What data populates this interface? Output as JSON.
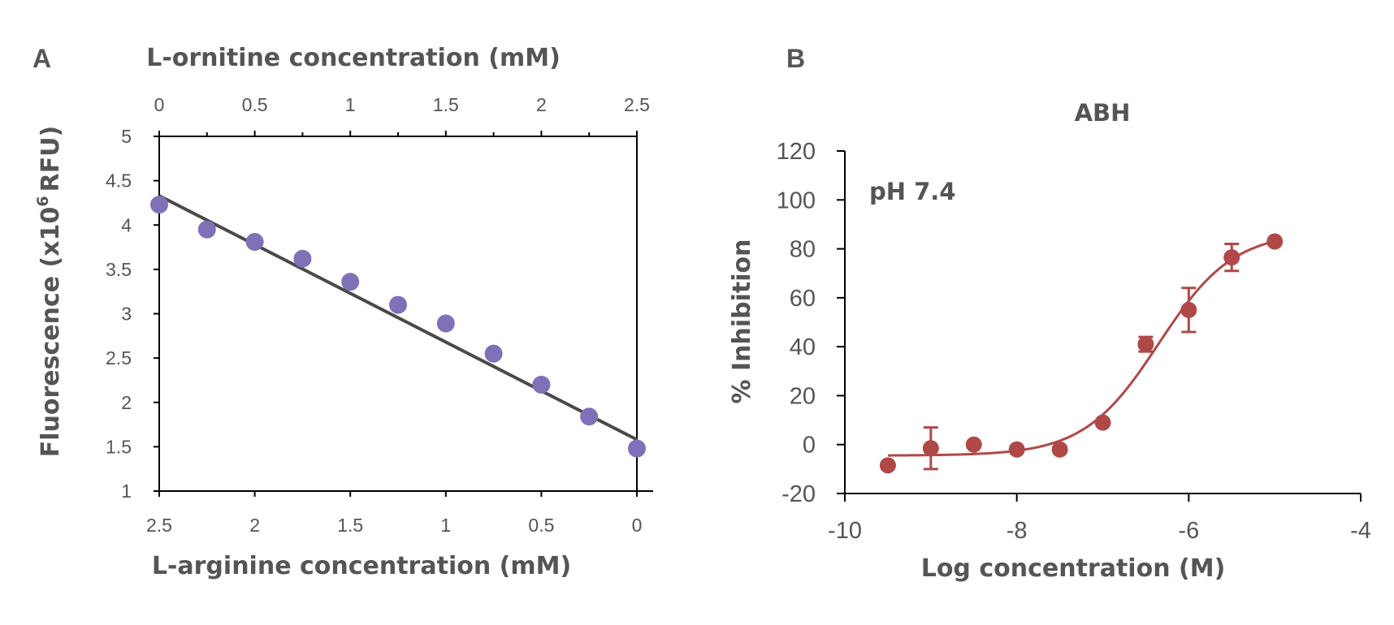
{
  "chart_data": [
    {
      "panel": "A",
      "type": "scatter",
      "x_label_top": "L-ornitine concentration (mM)",
      "x_label_bottom": "L-arginine concentration (mM)",
      "y_label_main": "Fluorescence (x10",
      "y_label_sup": "6",
      "y_label_end": "RFU)",
      "x_top_ticks": [
        "0",
        "0.5",
        "1",
        "1.5",
        "2",
        "2.5"
      ],
      "x_bottom_ticks": [
        "2.5",
        "2",
        "1.5",
        "1",
        "0.5",
        "0"
      ],
      "y_ticks": [
        "1",
        "1.5",
        "2",
        "2.5",
        "3",
        "3.5",
        "4",
        "4.5",
        "5"
      ],
      "ylim": [
        1,
        5
      ],
      "xlim_ornithine": [
        0,
        2.5
      ],
      "series": [
        {
          "x_ornithine": [
            0,
            0.25,
            0.5,
            0.75,
            1,
            1.25,
            1.5,
            1.75,
            2,
            2.25,
            2.5
          ],
          "x_arginine": [
            2.5,
            2.25,
            2.0,
            1.75,
            1.5,
            1.25,
            1.0,
            0.75,
            0.5,
            0.25,
            0
          ],
          "y": [
            4.23,
            3.95,
            3.81,
            3.62,
            3.36,
            3.1,
            2.89,
            2.55,
            2.2,
            1.84,
            1.48
          ]
        }
      ],
      "fit_line": {
        "x_ornithine": [
          0,
          2.5
        ],
        "y": [
          4.33,
          1.58
        ]
      },
      "colors": {
        "points": "#8070b8",
        "line": "#4a4a4a"
      },
      "grid": false
    },
    {
      "panel": "B",
      "type": "scatter",
      "title": "ABH",
      "annotation": "pH 7.4",
      "xlabel": "Log concentration (M)",
      "ylabel": "% Inhibition",
      "x_ticks": [
        "-10",
        "-8",
        "-6",
        "-4"
      ],
      "y_ticks": [
        "-20",
        "0",
        "20",
        "40",
        "60",
        "80",
        "100",
        "120"
      ],
      "xlim": [
        -10,
        -4
      ],
      "ylim": [
        -20,
        120
      ],
      "series": [
        {
          "x": [
            -9.5,
            -9,
            -8.5,
            -8,
            -7.5,
            -7,
            -6.5,
            -6,
            -5.5,
            -5
          ],
          "y": [
            -8.5,
            -1.5,
            0,
            -2,
            -2,
            9,
            41,
            55,
            76.5,
            83
          ],
          "error": [
            0,
            8.5,
            0,
            0,
            0,
            0,
            3,
            9,
            5.5,
            0
          ]
        }
      ],
      "fit_curve": {
        "bottom": -4.5,
        "top": 87,
        "log_ic50": -6.35,
        "hill": 1.0
      },
      "colors": {
        "points": "#b04848",
        "line": "#b04848"
      },
      "grid": false
    }
  ]
}
